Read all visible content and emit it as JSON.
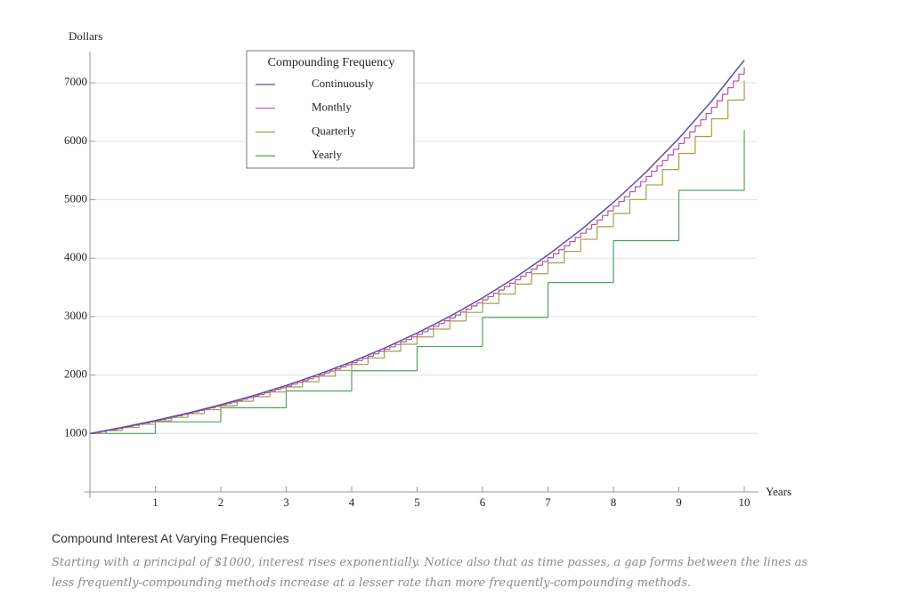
{
  "chart_data": {
    "type": "line",
    "y_label": "Dollars",
    "x_label": "Years",
    "caption_title": "Compound Interest At Varying Frequencies",
    "caption_text": "Starting with a principal of $1000, interest rises exponentially. Notice also that as time passes, a gap forms between the lines as less frequently-compounding methods increase at a lesser rate than more frequently-compounding methods.",
    "legend_title": "Compounding Frequency",
    "xlim": [
      0,
      10.2
    ],
    "ylim": [
      0,
      7500
    ],
    "xticks": [
      1,
      2,
      3,
      4,
      5,
      6,
      7,
      8,
      9,
      10
    ],
    "yticks": [
      1000,
      2000,
      3000,
      4000,
      5000,
      6000,
      7000
    ],
    "grid": true,
    "series": [
      {
        "name": "Continuously",
        "color": "#5b4fa6",
        "step": false,
        "x": [
          0,
          0.5,
          1,
          1.5,
          2,
          2.5,
          3,
          3.5,
          4,
          4.5,
          5,
          5.5,
          6,
          6.5,
          7,
          7.5,
          8,
          8.5,
          9,
          9.5,
          10
        ],
        "values": [
          1000,
          1105,
          1221,
          1350,
          1492,
          1649,
          1822,
          2014,
          2226,
          2460,
          2718,
          3004,
          3320,
          3669,
          4055,
          4482,
          4953,
          5474,
          6050,
          6686,
          7389
        ]
      },
      {
        "name": "Monthly",
        "color": "#b5559c",
        "step": true,
        "x": [
          0,
          0.083,
          0.167,
          0.25,
          0.333,
          0.417,
          0.5,
          0.583,
          0.667,
          0.75,
          0.833,
          0.917,
          1,
          1.083,
          1.167,
          1.25,
          1.333,
          1.417,
          1.5,
          1.583,
          1.667,
          1.75,
          1.833,
          1.917,
          2,
          2.083,
          2.167,
          2.25,
          2.333,
          2.417,
          2.5,
          2.583,
          2.667,
          2.75,
          2.833,
          2.917,
          3,
          3.083,
          3.167,
          3.25,
          3.333,
          3.417,
          3.5,
          3.583,
          3.667,
          3.75,
          3.833,
          3.917,
          4,
          4.083,
          4.167,
          4.25,
          4.333,
          4.417,
          4.5,
          4.583,
          4.667,
          4.75,
          4.833,
          4.917,
          5,
          5.083,
          5.167,
          5.25,
          5.333,
          5.417,
          5.5,
          5.583,
          5.667,
          5.75,
          5.833,
          5.917,
          6,
          6.083,
          6.167,
          6.25,
          6.333,
          6.417,
          6.5,
          6.583,
          6.667,
          6.75,
          6.833,
          6.917,
          7,
          7.083,
          7.167,
          7.25,
          7.333,
          7.417,
          7.5,
          7.583,
          7.667,
          7.75,
          7.833,
          7.917,
          8,
          8.083,
          8.167,
          8.25,
          8.333,
          8.417,
          8.5,
          8.583,
          8.667,
          8.75,
          8.833,
          8.917,
          9,
          9.083,
          9.167,
          9.25,
          9.333,
          9.417,
          9.5,
          9.583,
          9.667,
          9.75,
          9.833,
          9.917,
          10
        ],
        "values": [
          1000,
          1017,
          1034,
          1051,
          1068,
          1086,
          1104,
          1123,
          1141,
          1160,
          1180,
          1199,
          1219,
          1240,
          1260,
          1281,
          1303,
          1324,
          1347,
          1369,
          1392,
          1415,
          1439,
          1463,
          1487,
          1512,
          1537,
          1563,
          1589,
          1615,
          1642,
          1669,
          1697,
          1725,
          1754,
          1783,
          1813,
          1843,
          1874,
          1905,
          1937,
          1969,
          2002,
          2036,
          2070,
          2104,
          2139,
          2175,
          2211,
          2248,
          2285,
          2323,
          2362,
          2402,
          2442,
          2482,
          2524,
          2566,
          2608,
          2652,
          2696,
          2741,
          2787,
          2833,
          2880,
          2928,
          2977,
          3027,
          3077,
          3129,
          3181,
          3234,
          3288,
          3342,
          3398,
          3455,
          3512,
          3571,
          3630,
          3691,
          3752,
          3815,
          3879,
          3943,
          4009,
          4076,
          4144,
          4213,
          4283,
          4354,
          4427,
          4501,
          4576,
          4652,
          4729,
          4808,
          4889,
          4970,
          5053,
          5137,
          5223,
          5310,
          5398,
          5488,
          5580,
          5673,
          5767,
          5863,
          5961,
          6060,
          6161,
          6264,
          6368,
          6475,
          6582,
          6692,
          6804,
          6917,
          7032,
          7150,
          7269
        ]
      },
      {
        "name": "Quarterly",
        "color": "#a99b4c",
        "step": true,
        "x": [
          0,
          0.25,
          0.5,
          0.75,
          1,
          1.25,
          1.5,
          1.75,
          2,
          2.25,
          2.5,
          2.75,
          3,
          3.25,
          3.5,
          3.75,
          4,
          4.25,
          4.5,
          4.75,
          5,
          5.25,
          5.5,
          5.75,
          6,
          6.25,
          6.5,
          6.75,
          7,
          7.25,
          7.5,
          7.75,
          8,
          8.25,
          8.5,
          8.75,
          9,
          9.25,
          9.5,
          9.75,
          10
        ],
        "values": [
          1000,
          1050,
          1103,
          1158,
          1216,
          1276,
          1340,
          1407,
          1477,
          1551,
          1629,
          1710,
          1796,
          1886,
          1980,
          2079,
          2183,
          2292,
          2407,
          2527,
          2653,
          2786,
          2925,
          3072,
          3225,
          3386,
          3556,
          3733,
          3920,
          4116,
          4322,
          4538,
          4765,
          5003,
          5253,
          5516,
          5792,
          6081,
          6385,
          6705,
          7040
        ]
      },
      {
        "name": "Yearly",
        "color": "#4ea264",
        "step": true,
        "x": [
          0,
          1,
          2,
          3,
          4,
          5,
          6,
          7,
          8,
          9,
          10
        ],
        "values": [
          1000,
          1200,
          1440,
          1728,
          2074,
          2488,
          2986,
          3583,
          4300,
          5160,
          6192
        ]
      }
    ]
  }
}
